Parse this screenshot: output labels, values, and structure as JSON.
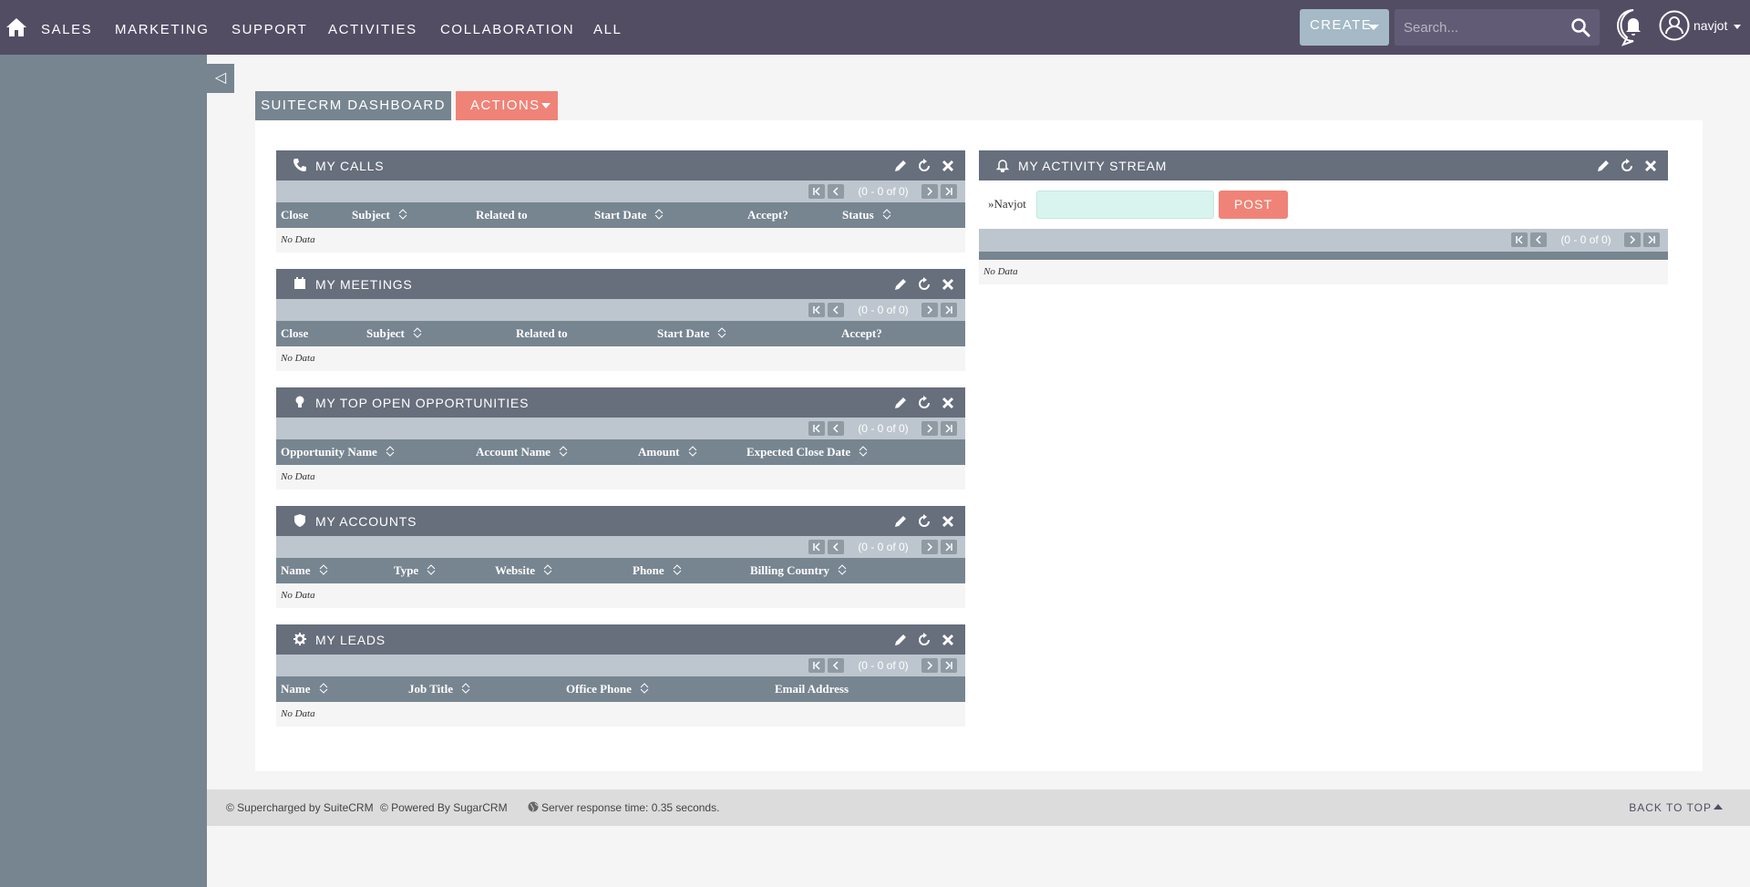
{
  "topnav": {
    "menu": [
      "SALES",
      "MARKETING",
      "SUPPORT",
      "ACTIVITIES",
      "COLLABORATION",
      "ALL"
    ],
    "create_label": "CREATE",
    "search_placeholder": "Search...",
    "user_name": "navjot"
  },
  "tabs": {
    "dashboard": "SUITECRM DASHBOARD",
    "actions": "ACTIONS"
  },
  "dashlets": {
    "calls": {
      "title": "MY CALLS",
      "icon": "phone-icon",
      "pagination": "(0 - 0 of 0)",
      "columns": [
        "Close",
        "Subject",
        "Related to",
        "Start Date",
        "Accept?",
        "Status"
      ],
      "empty": "No Data"
    },
    "meetings": {
      "title": "MY MEETINGS",
      "icon": "calendar-icon",
      "pagination": "(0 - 0 of 0)",
      "columns": [
        "Close",
        "Subject",
        "Related to",
        "Start Date",
        "Accept?"
      ],
      "empty": "No Data"
    },
    "opportunities": {
      "title": "MY TOP OPEN OPPORTUNITIES",
      "icon": "lightbulb-icon",
      "pagination": "(0 - 0 of 0)",
      "columns": [
        "Opportunity Name",
        "Account Name",
        "Amount",
        "Expected Close Date"
      ],
      "empty": "No Data"
    },
    "accounts": {
      "title": "MY ACCOUNTS",
      "icon": "shield-icon",
      "pagination": "(0 - 0 of 0)",
      "columns": [
        "Name",
        "Type",
        "Website",
        "Phone",
        "Billing Country"
      ],
      "empty": "No Data"
    },
    "leads": {
      "title": "MY LEADS",
      "icon": "gear-icon",
      "pagination": "(0 - 0 of 0)",
      "columns": [
        "Name",
        "Job Title",
        "Office Phone",
        "Email Address"
      ],
      "empty": "No Data"
    }
  },
  "activity_stream": {
    "title": "MY ACTIVITY STREAM",
    "icon": "bell-icon",
    "user_label": "Navjot",
    "post_label": "POST",
    "pagination": "(0 - 0 of 0)",
    "empty": "No Data"
  },
  "footer": {
    "supercharged": "© Supercharged by SuiteCRM",
    "powered": "© Powered By SugarCRM",
    "server_time": "Server response time: 0.35 seconds.",
    "back_to_top": "BACK TO TOP"
  },
  "colors": {
    "topbar": "#534d64",
    "sidebar": "#778591",
    "dashlet_header": "#676e7c",
    "accent": "#f08377",
    "create_button": "#a5b9c6"
  }
}
